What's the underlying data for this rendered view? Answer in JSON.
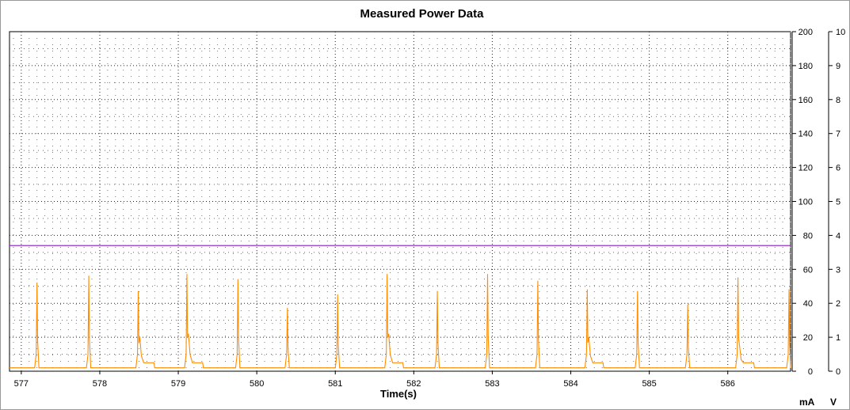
{
  "chart_data": {
    "type": "line",
    "title": "Measured Power Data",
    "xlabel": "Time(s)",
    "y_left_unit": "mA",
    "y_right_unit": "V",
    "xlim": [
      576.85,
      586.8
    ],
    "ylim_left": [
      0,
      200
    ],
    "ylim_right": [
      0,
      10
    ],
    "x_ticks": [
      577,
      578,
      579,
      580,
      581,
      582,
      583,
      584,
      585,
      586
    ],
    "y_left_ticks": [
      0,
      20,
      40,
      60,
      80,
      100,
      120,
      140,
      160,
      180,
      200
    ],
    "y_right_ticks": [
      0,
      1,
      2,
      3,
      4,
      5,
      6,
      7,
      8,
      9,
      10
    ],
    "grid": true,
    "series": [
      {
        "axis": "right",
        "color": "#9933cc",
        "x": [
          576.85,
          586.8
        ],
        "y": [
          3.7,
          3.7
        ]
      },
      {
        "axis": "left",
        "color": "#ff8c00",
        "baseline": 2,
        "spikes": [
          {
            "t": 577.2,
            "peak": 52,
            "tail": 0
          },
          {
            "t": 577.86,
            "peak": 56,
            "tail": 0
          },
          {
            "t": 578.49,
            "peak": 47,
            "tail": 20
          },
          {
            "t": 579.11,
            "peak": 57,
            "tail": 22
          },
          {
            "t": 579.76,
            "peak": 54,
            "tail": 0
          },
          {
            "t": 580.39,
            "peak": 37,
            "tail": 0
          },
          {
            "t": 581.03,
            "peak": 45,
            "tail": 0
          },
          {
            "t": 581.66,
            "peak": 57,
            "tail": 22
          },
          {
            "t": 582.3,
            "peak": 47,
            "tail": 0
          },
          {
            "t": 582.94,
            "peak": 57,
            "tail": 0
          },
          {
            "t": 583.58,
            "peak": 53,
            "tail": 0
          },
          {
            "t": 584.21,
            "peak": 48,
            "tail": 20
          },
          {
            "t": 584.85,
            "peak": 47,
            "tail": 0
          },
          {
            "t": 585.49,
            "peak": 39,
            "tail": 0
          },
          {
            "t": 586.13,
            "peak": 55,
            "tail": 15
          },
          {
            "t": 586.78,
            "peak": 48,
            "tail": 0
          }
        ]
      }
    ]
  }
}
